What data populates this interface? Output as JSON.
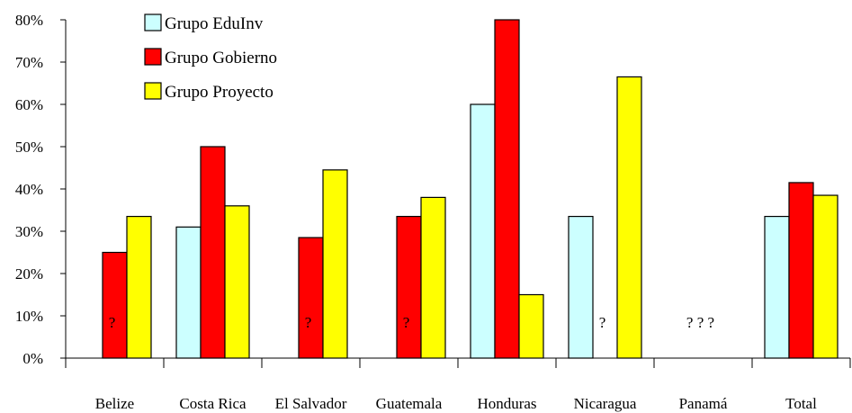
{
  "chart_data": {
    "type": "bar",
    "categories": [
      "Belize",
      "Costa Rica",
      "El Salvador",
      "Guatemala",
      "Honduras",
      "Nicaragua",
      "Panamá",
      "Total"
    ],
    "series": [
      {
        "name": "Grupo EduInv",
        "color": "#ccffff",
        "values": [
          null,
          31,
          null,
          null,
          60,
          33.5,
          null,
          33.5
        ]
      },
      {
        "name": "Grupo Gobierno",
        "color": "#ff0000",
        "values": [
          25,
          50,
          28.5,
          33.5,
          80,
          null,
          null,
          41.5
        ]
      },
      {
        "name": "Grupo Proyecto",
        "color": "#ffff00",
        "values": [
          33.5,
          36,
          44.5,
          38,
          15,
          66.5,
          null,
          38.5
        ]
      }
    ],
    "yticks": [
      "0%",
      "10%",
      "20%",
      "30%",
      "40%",
      "50%",
      "60%",
      "70%",
      "80%"
    ],
    "ylim": [
      0,
      80
    ],
    "annotations": [
      {
        "category": "Belize",
        "text": "?"
      },
      {
        "category": "El Salvador",
        "text": "?"
      },
      {
        "category": "Guatemala",
        "text": "?"
      },
      {
        "category": "Nicaragua",
        "text": "?"
      },
      {
        "category": "Panamá",
        "text": "? ? ?"
      }
    ],
    "legend_position": "top-left",
    "grid": false
  }
}
